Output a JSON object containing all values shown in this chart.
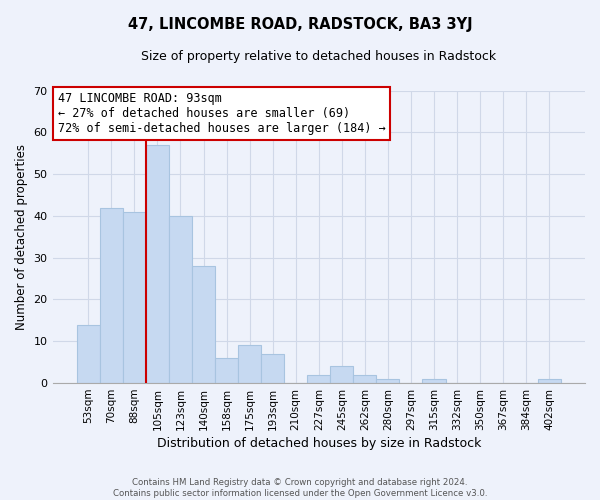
{
  "title": "47, LINCOMBE ROAD, RADSTOCK, BA3 3YJ",
  "subtitle": "Size of property relative to detached houses in Radstock",
  "xlabel": "Distribution of detached houses by size in Radstock",
  "ylabel": "Number of detached properties",
  "bar_labels": [
    "53sqm",
    "70sqm",
    "88sqm",
    "105sqm",
    "123sqm",
    "140sqm",
    "158sqm",
    "175sqm",
    "193sqm",
    "210sqm",
    "227sqm",
    "245sqm",
    "262sqm",
    "280sqm",
    "297sqm",
    "315sqm",
    "332sqm",
    "350sqm",
    "367sqm",
    "384sqm",
    "402sqm"
  ],
  "bar_values": [
    14,
    42,
    41,
    57,
    40,
    28,
    6,
    9,
    7,
    0,
    2,
    4,
    2,
    1,
    0,
    1,
    0,
    0,
    0,
    0,
    1
  ],
  "bar_color": "#c6d9f1",
  "bar_edge_color": "#a8c4e0",
  "vline_x_idx": 2,
  "vline_color": "#cc0000",
  "annotation_lines": [
    "47 LINCOMBE ROAD: 93sqm",
    "← 27% of detached houses are smaller (69)",
    "72% of semi-detached houses are larger (184) →"
  ],
  "annotation_box_color": "#ffffff",
  "annotation_box_edge": "#cc0000",
  "ylim": [
    0,
    70
  ],
  "yticks": [
    0,
    10,
    20,
    30,
    40,
    50,
    60,
    70
  ],
  "footer_line1": "Contains HM Land Registry data © Crown copyright and database right 2024.",
  "footer_line2": "Contains public sector information licensed under the Open Government Licence v3.0.",
  "bg_color": "#eef2fb",
  "plot_bg_color": "#eef2fb",
  "grid_color": "#d0d8e8"
}
